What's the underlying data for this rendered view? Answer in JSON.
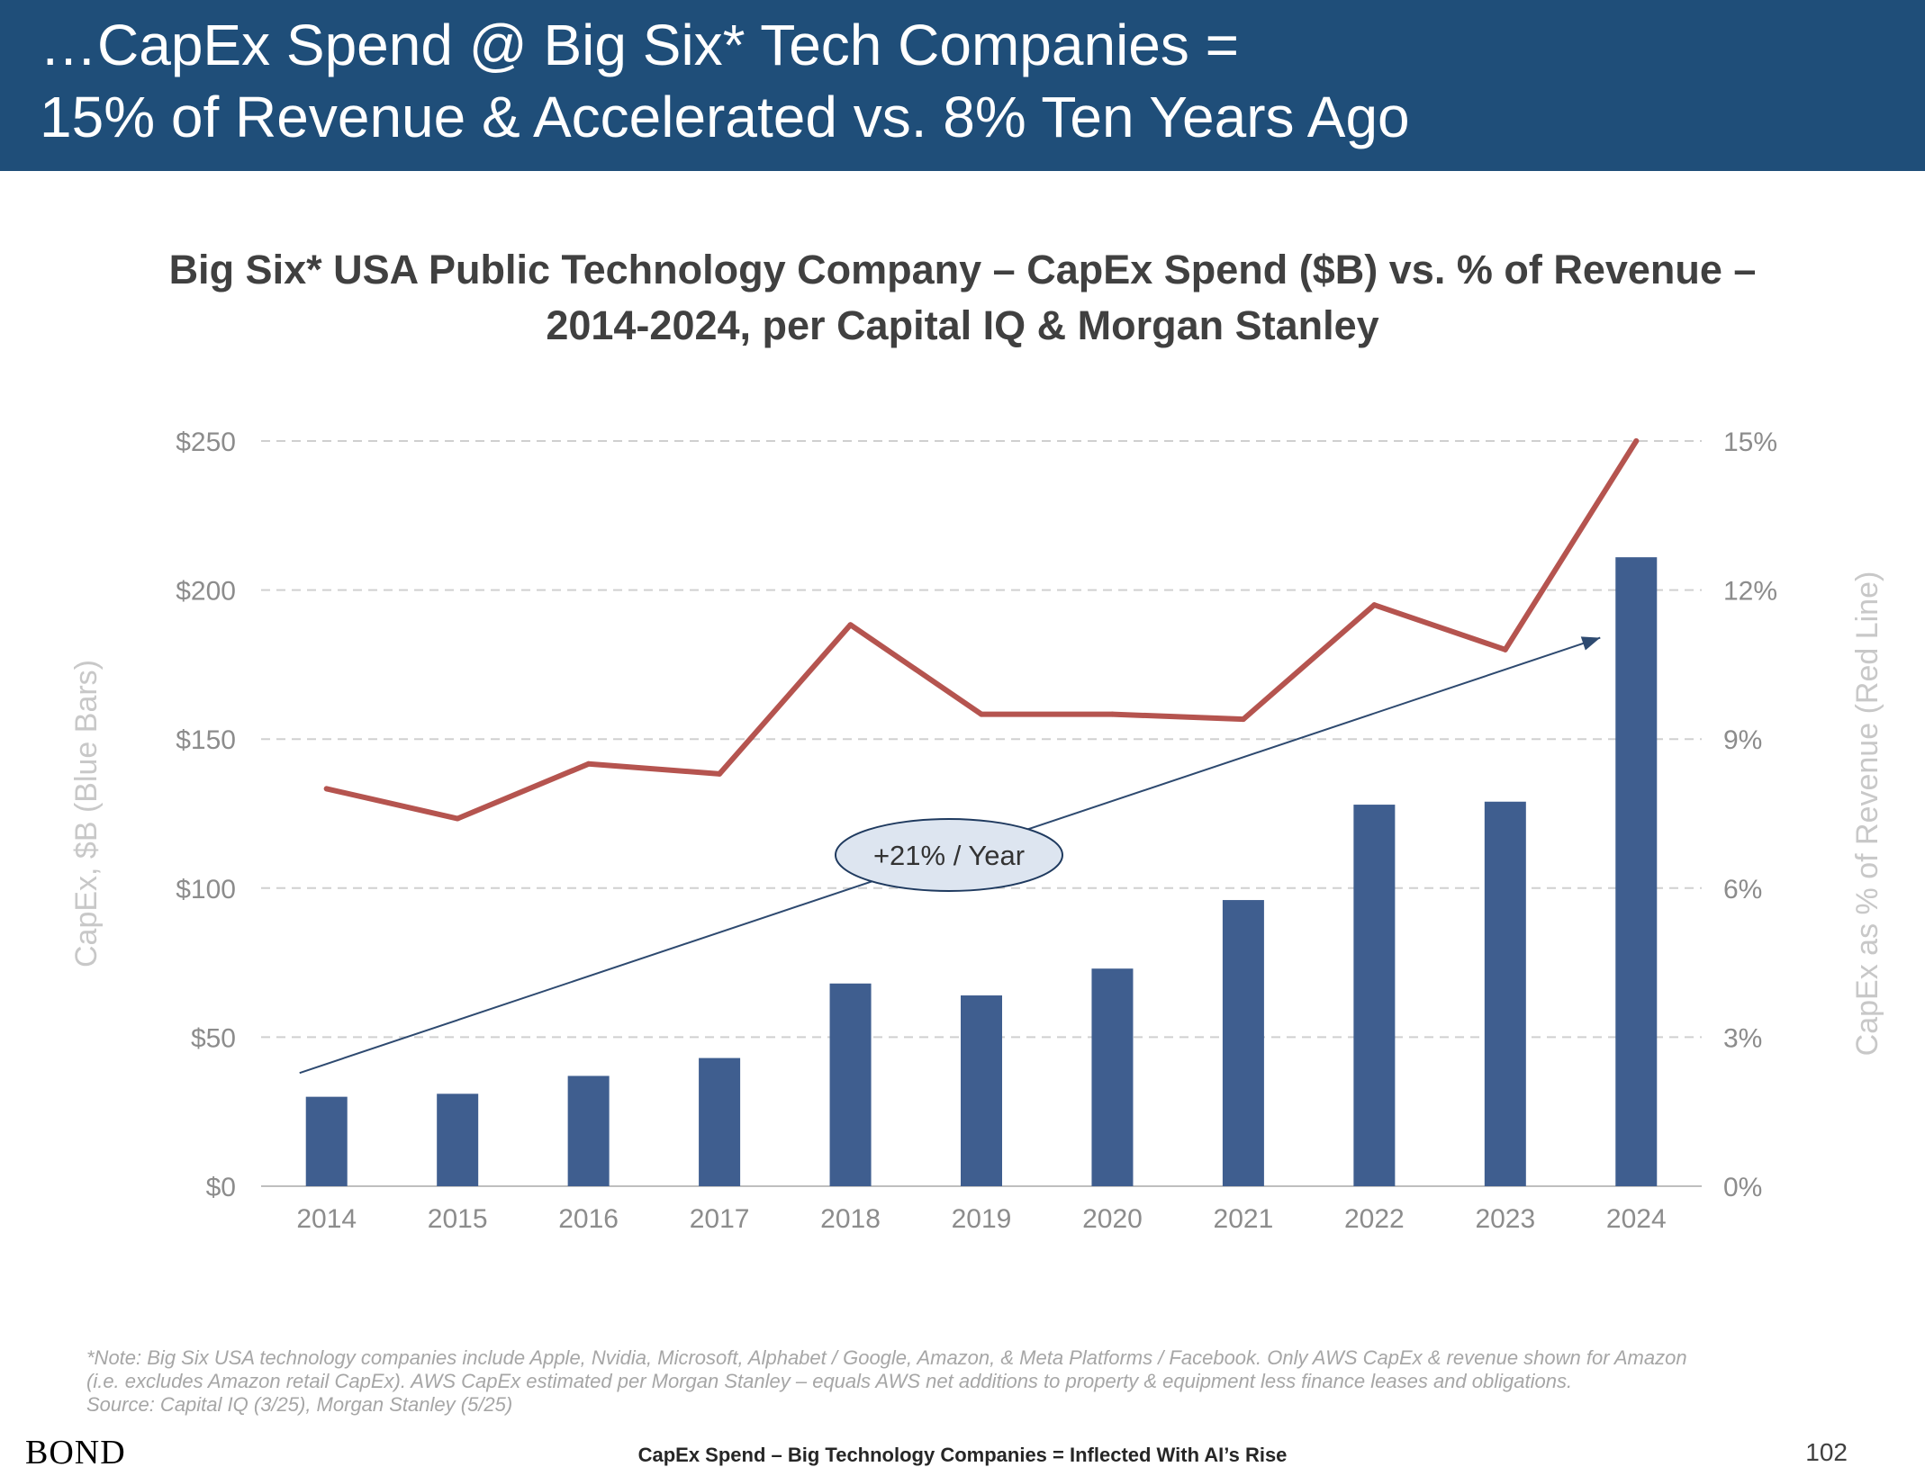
{
  "header": {
    "line1": "…CapEx Spend @ Big Six* Tech Companies =",
    "line2": "15% of Revenue & Accelerated vs. 8% Ten Years Ago"
  },
  "chart_title": {
    "line1": "Big Six* USA Public Technology Company – CapEx Spend ($B) vs. % of Revenue –",
    "line2": "2014-2024, per Capital IQ & Morgan Stanley"
  },
  "chart_data": {
    "type": "bar",
    "categories": [
      "2014",
      "2015",
      "2016",
      "2017",
      "2018",
      "2019",
      "2020",
      "2021",
      "2022",
      "2023",
      "2024"
    ],
    "series": [
      {
        "type": "bar",
        "axis": "left",
        "values": [
          30,
          31,
          37,
          43,
          68,
          64,
          73,
          96,
          128,
          129,
          211
        ]
      },
      {
        "type": "line",
        "axis": "right",
        "values": [
          8.0,
          7.4,
          8.5,
          8.3,
          11.3,
          9.5,
          9.5,
          9.4,
          11.7,
          10.8,
          15.0
        ]
      }
    ],
    "colors": {
      "bars": "#3f5e8f",
      "line": "#b5544f",
      "trend": "#2e4a70"
    },
    "y_left": {
      "label": "CapEx, $B (Blue Bars)",
      "range": [
        0,
        250
      ],
      "ticks": [
        "$0",
        "$50",
        "$100",
        "$150",
        "$200",
        "$250"
      ]
    },
    "y_right": {
      "label": "CapEx as % of Revenue (Red Line)",
      "range": [
        0,
        15
      ],
      "ticks": [
        "0%",
        "3%",
        "6%",
        "9%",
        "12%",
        "15%"
      ]
    },
    "grid": "horizontal-dashed",
    "annotation": {
      "text": "+21% / Year",
      "trend_from": [
        "2014",
        38
      ],
      "trend_to": [
        "2024",
        184
      ]
    }
  },
  "footnote": {
    "line1": "*Note: Big Six USA technology companies include Apple, Nvidia, Microsoft, Alphabet / Google, Amazon, & Meta Platforms / Facebook. Only AWS CapEx & revenue shown for Amazon",
    "line2": "(i.e. excludes Amazon retail CapEx). AWS CapEx estimated per Morgan Stanley – equals AWS net additions to property & equipment less finance leases and obligations.",
    "line3": "Source: Capital IQ (3/25), Morgan Stanley (5/25)"
  },
  "footer": {
    "logo": "BOND",
    "text": "CapEx Spend – Big Technology Companies = Inflected With AI’s Rise",
    "page": "102"
  }
}
